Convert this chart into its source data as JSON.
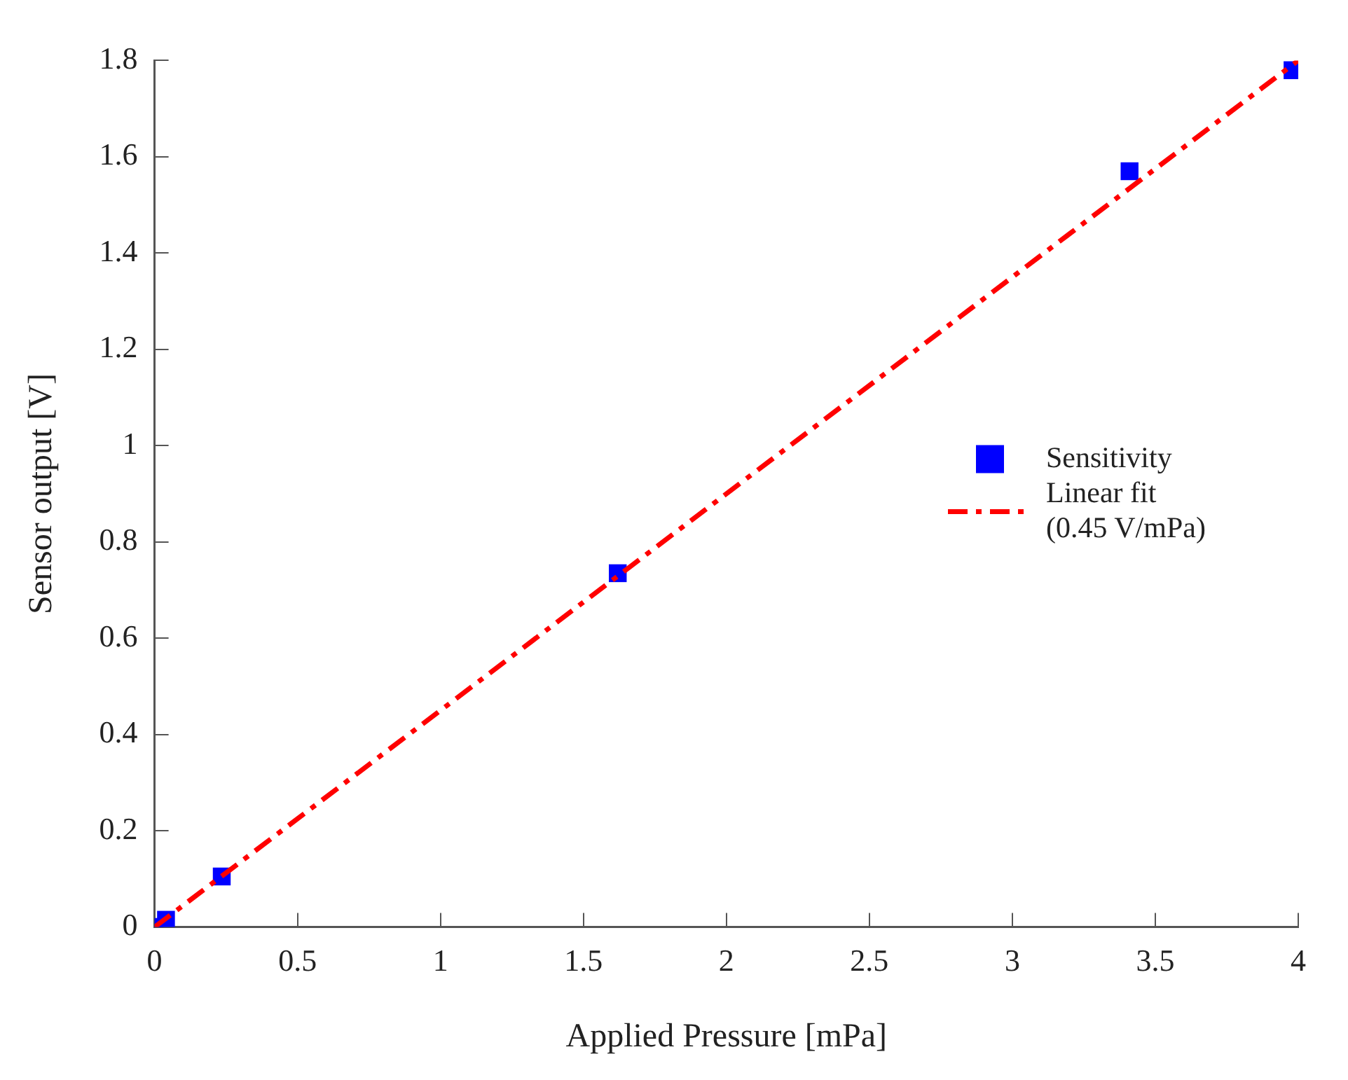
{
  "chart_data": {
    "type": "scatter",
    "xlabel": "Applied Pressure [mPa]",
    "ylabel": "Sensor output [V]",
    "series": [
      {
        "name": "Sensitivity",
        "type": "scatter",
        "color": "#0000ff",
        "marker": "square",
        "x": [
          0,
          0.04,
          0.235,
          1.62,
          3.41,
          3.98
        ],
        "values": [
          0,
          0.015,
          0.105,
          0.735,
          1.57,
          1.78
        ]
      },
      {
        "name": "Linear fit (0.45 V/mPa)",
        "type": "line",
        "color": "#ff0000",
        "marker": "none",
        "line_style": "dashed",
        "x": [
          0,
          4
        ],
        "values": [
          0,
          1.8
        ]
      }
    ],
    "xlim": [
      0,
      4
    ],
    "xticks": [
      0,
      0.5,
      1,
      1.5,
      2,
      2.5,
      3,
      3.5,
      4
    ],
    "ylim": [
      0,
      1.8
    ],
    "yticks": [
      0,
      0.2,
      0.4,
      0.6,
      0.8,
      1,
      1.2,
      1.4,
      1.6,
      1.8
    ],
    "grid": false,
    "legend": "right"
  }
}
